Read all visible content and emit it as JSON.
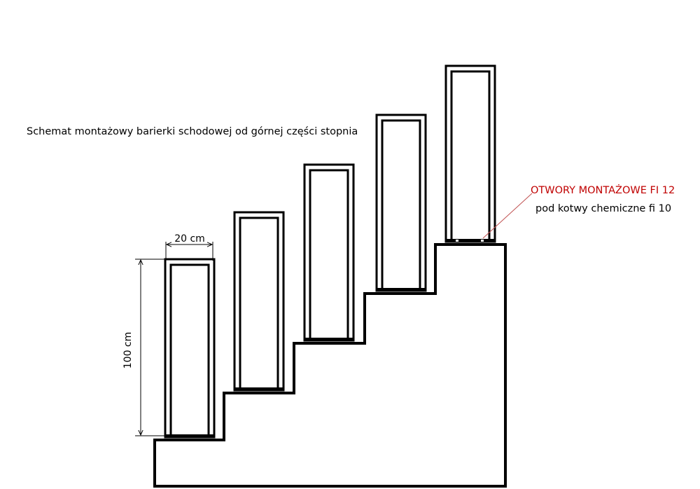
{
  "title": "Schemat montażowy barierki schodowej od górnej części stopnia",
  "dimensions": {
    "width_label": "20 cm",
    "height_label": "100 cm"
  },
  "annotation": {
    "line1": "OTWORY MONTAŻOWE FI 12",
    "line2": "pod kotwy chemiczne fi 10"
  },
  "panel_count": 5,
  "colors": {
    "stroke": "#000000",
    "annotation": "#c00000",
    "leader": "#c05050",
    "background": "#ffffff"
  }
}
